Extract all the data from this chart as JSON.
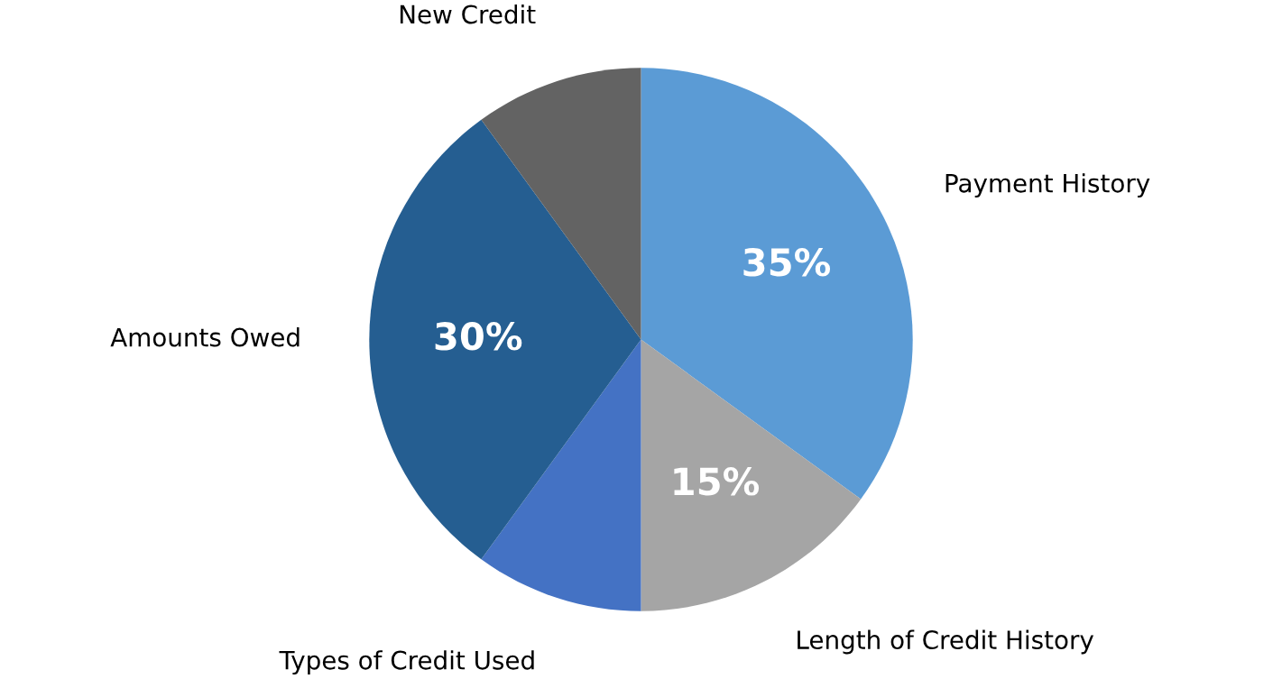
{
  "chart_data": {
    "type": "pie",
    "categories": [
      "Payment History",
      "Length of Credit History",
      "Types of Credit Used",
      "Amounts Owed",
      "New Credit"
    ],
    "values": [
      35,
      15,
      10,
      30,
      10
    ],
    "colors": [
      "#5b9bd5",
      "#a5a5a5",
      "#4472c4",
      "#255e91",
      "#636363"
    ],
    "value_labels": [
      "35%",
      "15%",
      null,
      "30%",
      null
    ],
    "legend": false
  }
}
